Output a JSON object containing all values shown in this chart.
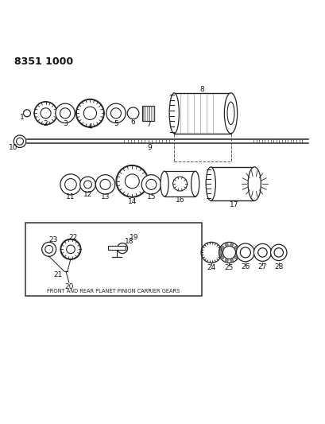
{
  "title": "8351 1000",
  "bg_color": "#ffffff",
  "line_color": "#222222",
  "caption": "FRONT AND REAR PLANET PINION CARRIER GEARS"
}
